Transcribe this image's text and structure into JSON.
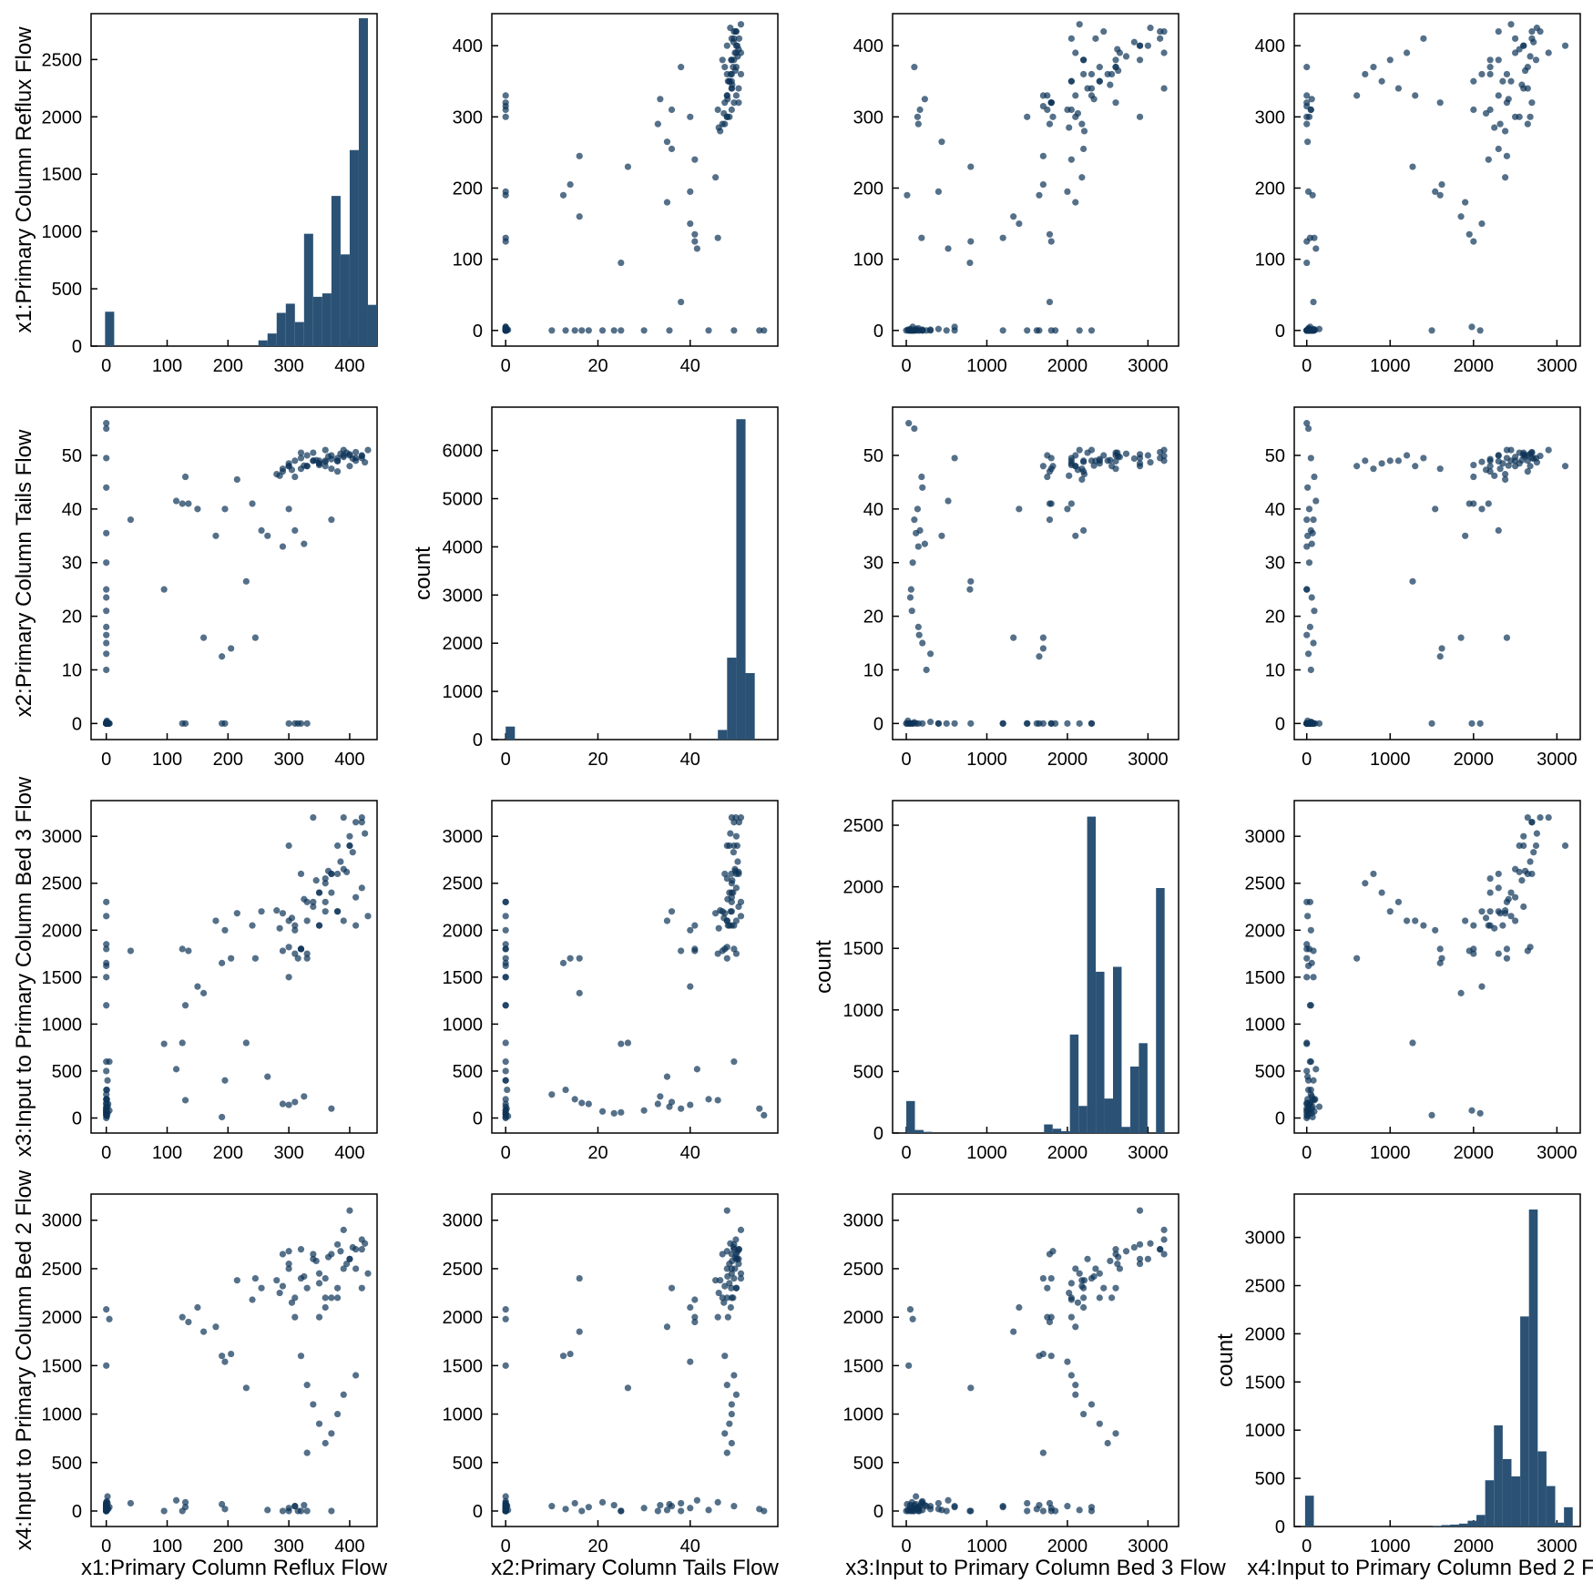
{
  "variables": [
    {
      "id": "x1",
      "label": "x1:Primary Column Reflux Flow",
      "range": [
        -25,
        445
      ],
      "ticks": [
        0,
        100,
        200,
        300,
        400
      ]
    },
    {
      "id": "x2",
      "label": "x2:Primary Column Tails Flow",
      "range": [
        -3,
        59
      ],
      "ticks": [
        0,
        20,
        40
      ]
    },
    {
      "id": "x3",
      "label": "x3:Input to Primary Column Bed 3 Flow",
      "range": [
        -170,
        3380
      ],
      "ticks": [
        0,
        1000,
        2000,
        3000
      ]
    },
    {
      "id": "x4",
      "label": "x4:Input to Primary Column Bed 2 Flow",
      "range": [
        -150,
        3280
      ],
      "ticks": [
        0,
        1000,
        2000,
        3000
      ]
    }
  ],
  "count_label": "count",
  "colors": {
    "histogram": "#2b5275",
    "scatter": "#0d3357"
  },
  "chart_data": {
    "type": "scatter",
    "layout": "pair-plot 4x4 (diagonal = histograms, off-diagonal = scatter)",
    "histograms": [
      {
        "variable": "x1",
        "ylabel": "",
        "ylim": [
          0,
          2900
        ],
        "yticks": [
          0,
          500,
          1000,
          1500,
          2000,
          2500
        ],
        "bin_width": 15,
        "bins": [
          [
            -2,
            300
          ],
          [
            250,
            50
          ],
          [
            265,
            110
          ],
          [
            280,
            290
          ],
          [
            295,
            370
          ],
          [
            310,
            210
          ],
          [
            325,
            980
          ],
          [
            340,
            430
          ],
          [
            355,
            460
          ],
          [
            370,
            1310
          ],
          [
            385,
            800
          ],
          [
            400,
            1710
          ],
          [
            415,
            2860
          ],
          [
            430,
            360
          ]
        ]
      },
      {
        "variable": "x2",
        "ylabel": "count",
        "ylim": [
          0,
          6900
        ],
        "yticks": [
          0,
          1000,
          2000,
          3000,
          4000,
          5000,
          6000
        ],
        "bin_width": 2,
        "bins": [
          [
            0,
            270
          ],
          [
            46,
            200
          ],
          [
            48,
            1700
          ],
          [
            50,
            6650
          ],
          [
            52,
            1380
          ]
        ]
      },
      {
        "variable": "x3",
        "ylabel": "count",
        "ylim": [
          0,
          2700
        ],
        "yticks": [
          0,
          500,
          1000,
          1500,
          2000,
          2500
        ],
        "bin_width": 107,
        "bins": [
          [
            0,
            260
          ],
          [
            107,
            25
          ],
          [
            214,
            10
          ],
          [
            1710,
            70
          ],
          [
            1817,
            35
          ],
          [
            1924,
            15
          ],
          [
            2031,
            800
          ],
          [
            2138,
            220
          ],
          [
            2245,
            2570
          ],
          [
            2352,
            1310
          ],
          [
            2459,
            280
          ],
          [
            2566,
            1350
          ],
          [
            2673,
            50
          ],
          [
            2780,
            540
          ],
          [
            2887,
            730
          ],
          [
            3100,
            1990
          ]
        ]
      },
      {
        "variable": "x4",
        "ylabel": "count",
        "ylim": [
          0,
          3450
        ],
        "yticks": [
          0,
          500,
          1000,
          1500,
          2000,
          2500,
          3000
        ],
        "bin_width": 105,
        "bins": [
          [
            -20,
            320
          ],
          [
            1510,
            5
          ],
          [
            1615,
            15
          ],
          [
            1720,
            20
          ],
          [
            1825,
            30
          ],
          [
            1930,
            60
          ],
          [
            2035,
            120
          ],
          [
            2140,
            480
          ],
          [
            2245,
            1050
          ],
          [
            2350,
            700
          ],
          [
            2455,
            520
          ],
          [
            2560,
            2180
          ],
          [
            2665,
            3290
          ],
          [
            2770,
            780
          ],
          [
            2875,
            420
          ],
          [
            2980,
            40
          ],
          [
            3085,
            200
          ]
        ]
      }
    ],
    "scatter_pairs": [
      {
        "x": "x2",
        "y": "x1",
        "ylim": [
          -22,
          445
        ],
        "yticks": [
          0,
          100,
          200,
          300,
          400
        ]
      },
      {
        "x": "x3",
        "y": "x1",
        "ylim": [
          -22,
          445
        ],
        "yticks": [
          0,
          100,
          200,
          300,
          400
        ]
      },
      {
        "x": "x4",
        "y": "x1",
        "ylim": [
          -22,
          445
        ],
        "yticks": [
          0,
          100,
          200,
          300,
          400
        ]
      },
      {
        "x": "x1",
        "y": "x2",
        "ylim": [
          -3,
          59
        ],
        "yticks": [
          0,
          10,
          20,
          30,
          40,
          50
        ]
      },
      {
        "x": "x3",
        "y": "x2",
        "ylim": [
          -3,
          59
        ],
        "yticks": [
          0,
          10,
          20,
          30,
          40,
          50
        ]
      },
      {
        "x": "x4",
        "y": "x2",
        "ylim": [
          -3,
          59
        ],
        "yticks": [
          0,
          10,
          20,
          30,
          40,
          50
        ]
      },
      {
        "x": "x1",
        "y": "x3",
        "ylim": [
          -160,
          3380
        ],
        "yticks": [
          0,
          500,
          1000,
          1500,
          2000,
          2500,
          3000
        ]
      },
      {
        "x": "x2",
        "y": "x3",
        "ylim": [
          -160,
          3380
        ],
        "yticks": [
          0,
          500,
          1000,
          1500,
          2000,
          2500,
          3000
        ]
      },
      {
        "x": "x4",
        "y": "x3",
        "ylim": [
          -160,
          3380
        ],
        "yticks": [
          0,
          500,
          1000,
          1500,
          2000,
          2500,
          3000
        ]
      },
      {
        "x": "x1",
        "y": "x4",
        "ylim": [
          -160,
          3270
        ],
        "yticks": [
          0,
          500,
          1000,
          1500,
          2000,
          2500,
          3000
        ]
      },
      {
        "x": "x2",
        "y": "x4",
        "ylim": [
          -160,
          3270
        ],
        "yticks": [
          0,
          500,
          1000,
          1500,
          2000,
          2500,
          3000
        ]
      },
      {
        "x": "x3",
        "y": "x4",
        "ylim": [
          -160,
          3270
        ],
        "yticks": [
          0,
          500,
          1000,
          1500,
          2000,
          2500,
          3000
        ]
      }
    ],
    "observations": [
      [
        0,
        0,
        0,
        0
      ],
      [
        1,
        0.5,
        20,
        10
      ],
      [
        2,
        0,
        50,
        30
      ],
      [
        0,
        0.2,
        100,
        60
      ],
      [
        3,
        0,
        150,
        20
      ],
      [
        1,
        0.3,
        300,
        50
      ],
      [
        2,
        0,
        400,
        80
      ],
      [
        0,
        0,
        500,
        0
      ],
      [
        5,
        0,
        600,
        40
      ],
      [
        1,
        0,
        200,
        100
      ],
      [
        0,
        0,
        80,
        0
      ],
      [
        2,
        0,
        120,
        150
      ],
      [
        190,
        0,
        10,
        70
      ],
      [
        195,
        0,
        400,
        20
      ],
      [
        125,
        0,
        800,
        0
      ],
      [
        130,
        0,
        1200,
        40
      ],
      [
        300,
        0,
        1500,
        0
      ],
      [
        320,
        0,
        1800,
        0
      ],
      [
        330,
        0,
        2300,
        0
      ],
      [
        310,
        0,
        2000,
        50
      ],
      [
        315,
        0,
        1700,
        0
      ],
      [
        0,
        56,
        30,
        0
      ],
      [
        0,
        55,
        100,
        20
      ],
      [
        0,
        49.5,
        600,
        50
      ],
      [
        0,
        44,
        200,
        10
      ],
      [
        0,
        35.5,
        120,
        70
      ],
      [
        0,
        30,
        80,
        30
      ],
      [
        0,
        25,
        60,
        0
      ],
      [
        0,
        23.5,
        50,
        60
      ],
      [
        0,
        21,
        70,
        90
      ],
      [
        0,
        18,
        150,
        40
      ],
      [
        0,
        16.5,
        160,
        0
      ],
      [
        0,
        15,
        200,
        80
      ],
      [
        0,
        13,
        300,
        20
      ],
      [
        0,
        10,
        250,
        50
      ],
      [
        0,
        0,
        1850,
        0
      ],
      [
        0,
        0,
        1800,
        30
      ],
      [
        0,
        0,
        1650,
        60
      ],
      [
        0,
        0,
        1620,
        20
      ],
      [
        0,
        0,
        1500,
        80
      ],
      [
        0,
        0,
        2300,
        40
      ],
      [
        0,
        0,
        2150,
        10
      ],
      [
        0,
        0,
        1200,
        50
      ],
      [
        0,
        0,
        50,
        2080
      ],
      [
        5,
        0,
        80,
        1980
      ],
      [
        0,
        0,
        30,
        1500
      ],
      [
        40,
        38,
        1780,
        80
      ],
      [
        95,
        25,
        790,
        0
      ],
      [
        125,
        41,
        1800,
        2000
      ],
      [
        135,
        41,
        1780,
        1950
      ],
      [
        150,
        40,
        1400,
        2100
      ],
      [
        160,
        16,
        1330,
        1850
      ],
      [
        190,
        12.5,
        1650,
        1600
      ],
      [
        195,
        40,
        2000,
        1540
      ],
      [
        205,
        14,
        1700,
        1620
      ],
      [
        180,
        35,
        2100,
        1900
      ],
      [
        215,
        45.5,
        2180,
        2380
      ],
      [
        230,
        26.5,
        800,
        1270
      ],
      [
        240,
        41,
        2050,
        2180
      ],
      [
        245,
        16,
        1700,
        2400
      ],
      [
        255,
        36,
        2200,
        2300
      ],
      [
        115,
        41.5,
        520,
        110
      ],
      [
        130,
        46,
        190,
        90
      ],
      [
        265,
        35,
        440,
        10
      ],
      [
        290,
        33,
        150,
        0
      ],
      [
        300,
        40,
        140,
        30
      ],
      [
        310,
        36,
        170,
        50
      ],
      [
        325,
        33.5,
        230,
        60
      ],
      [
        370,
        38,
        100,
        0
      ],
      [
        280,
        46.5,
        2210,
        2380
      ],
      [
        290,
        47.5,
        2180,
        2320
      ],
      [
        300,
        48,
        2100,
        2500
      ],
      [
        310,
        49,
        2050,
        2200
      ],
      [
        320,
        49.5,
        1800,
        2400
      ],
      [
        330,
        50,
        1750,
        2300
      ],
      [
        340,
        50.5,
        2250,
        2600
      ],
      [
        350,
        49,
        2400,
        2450
      ],
      [
        360,
        48,
        2550,
        2200
      ],
      [
        370,
        50,
        2600,
        2650
      ],
      [
        380,
        49.5,
        2900,
        2750
      ],
      [
        390,
        51,
        3200,
        2900
      ],
      [
        400,
        50,
        3000,
        2600
      ],
      [
        410,
        49,
        2350,
        2500
      ],
      [
        420,
        50,
        2450,
        2300
      ],
      [
        430,
        51,
        2150,
        2450
      ],
      [
        300,
        48.5,
        2900,
        2550
      ],
      [
        320,
        50.5,
        2600,
        2700
      ],
      [
        340,
        49,
        3200,
        2650
      ],
      [
        360,
        51,
        2300,
        2400
      ],
      [
        380,
        47,
        2200,
        2200
      ],
      [
        400,
        48,
        2900,
        3100
      ],
      [
        420,
        49.5,
        3150,
        2700
      ],
      [
        350,
        48.5,
        2050,
        2350
      ],
      [
        395,
        50.5,
        2620,
        2550
      ],
      [
        290,
        47,
        1780,
        2650
      ],
      [
        300,
        48,
        1820,
        2680
      ],
      [
        310,
        46,
        1750,
        2000
      ],
      [
        320,
        47.5,
        1800,
        1600
      ],
      [
        330,
        48,
        2100,
        1300
      ],
      [
        340,
        49,
        2300,
        1100
      ],
      [
        350,
        48.5,
        2400,
        900
      ],
      [
        360,
        49,
        2500,
        700
      ],
      [
        370,
        47.5,
        2600,
        800
      ],
      [
        380,
        49,
        2200,
        1000
      ],
      [
        390,
        50,
        2100,
        1200
      ],
      [
        410,
        49.5,
        2050,
        1400
      ],
      [
        330,
        48,
        1700,
        600
      ],
      [
        350,
        48.2,
        2050,
        2000
      ],
      [
        360,
        48.8,
        2200,
        2100
      ],
      [
        370,
        49.3,
        2400,
        2200
      ],
      [
        380,
        48.9,
        2600,
        2300
      ],
      [
        390,
        49.7,
        2650,
        2500
      ],
      [
        400,
        50.2,
        2900,
        2600
      ],
      [
        410,
        50.6,
        3150,
        2700
      ],
      [
        420,
        49.9,
        3200,
        2800
      ],
      [
        285,
        46.2,
        2020,
        2250
      ],
      [
        305,
        47.3,
        2130,
        2150
      ],
      [
        325,
        48.1,
        2330,
        2420
      ],
      [
        345,
        49.1,
        2530,
        2580
      ],
      [
        365,
        49.8,
        2630,
        2620
      ],
      [
        385,
        50.3,
        2730,
        2680
      ],
      [
        405,
        49.4,
        2830,
        2720
      ],
      [
        425,
        48.7,
        3030,
        2760
      ]
    ]
  }
}
